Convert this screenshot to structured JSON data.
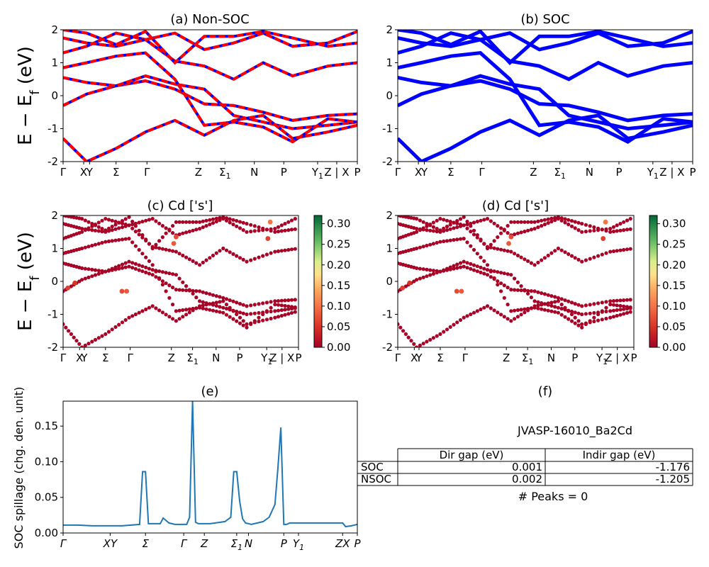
{
  "figure": {
    "ylabel_main": "E − E",
    "ylabel_sub": "f",
    "ylabel_unit": " (eV)"
  },
  "chart_data": [
    {
      "id": "a",
      "type": "line",
      "title": "(a) Non-SOC",
      "ylim": [
        -2,
        2
      ],
      "yticks": [
        -2,
        -1,
        0,
        1,
        2
      ],
      "xticks": [
        "Γ",
        "X",
        "Y",
        "Σ",
        "Γ",
        "Z",
        "Σ1",
        "N",
        "P",
        "Y1",
        "Z | X",
        "P"
      ],
      "colors": {
        "bands": "#ff0000",
        "overlay": "#0000ff"
      },
      "series": [
        {
          "x": [
            0,
            0.08,
            0.18,
            0.28,
            0.38,
            0.48,
            0.58,
            0.68,
            0.78,
            0.9,
            1.0
          ],
          "y": [
            -0.3,
            0.05,
            0.3,
            0.45,
            0.2,
            -0.25,
            -0.3,
            -0.5,
            -0.75,
            -0.6,
            -0.55
          ]
        },
        {
          "x": [
            0,
            0.08,
            0.18,
            0.28,
            0.38,
            0.48,
            0.58,
            0.68,
            0.78,
            0.9,
            1.0
          ],
          "y": [
            0.55,
            0.4,
            0.3,
            0.6,
            0.35,
            0.2,
            -0.6,
            -0.8,
            -1.0,
            -0.9,
            -0.8
          ]
        },
        {
          "x": [
            0,
            0.08,
            0.18,
            0.28,
            0.38,
            0.48,
            0.58,
            0.68,
            0.78,
            0.9,
            1.0
          ],
          "y": [
            0.85,
            1.0,
            1.2,
            1.3,
            0.5,
            -0.9,
            -0.8,
            -0.95,
            -1.4,
            -0.7,
            -0.8
          ]
        },
        {
          "x": [
            0,
            0.08,
            0.18,
            0.28,
            0.38,
            0.48,
            0.58,
            0.68,
            0.78,
            0.9,
            1.0
          ],
          "y": [
            1.3,
            1.5,
            1.9,
            1.7,
            1.05,
            0.9,
            0.5,
            1.0,
            0.6,
            0.9,
            1.0
          ]
        },
        {
          "x": [
            0,
            0.08,
            0.18,
            0.28,
            0.38,
            0.48,
            0.58,
            0.68,
            0.78,
            0.9,
            1.0
          ],
          "y": [
            -1.3,
            -2.0,
            -1.6,
            -1.1,
            -0.75,
            -1.2,
            -0.75,
            -0.6,
            -1.3,
            -1.1,
            -0.9
          ]
        },
        {
          "x": [
            0,
            0.08,
            0.18,
            0.28,
            0.38,
            0.48,
            0.58,
            0.68,
            0.78,
            0.9,
            1.0
          ],
          "y": [
            1.75,
            1.6,
            1.5,
            1.7,
            1.9,
            1.4,
            1.6,
            1.9,
            1.5,
            1.6,
            1.95
          ]
        },
        {
          "x": [
            0,
            0.08,
            0.18,
            0.28,
            0.38,
            0.48,
            0.58,
            0.68,
            0.78,
            0.9,
            1.0
          ],
          "y": [
            2.0,
            1.9,
            1.55,
            1.95,
            1.0,
            1.8,
            1.8,
            1.95,
            1.75,
            1.5,
            1.6
          ]
        }
      ]
    },
    {
      "id": "b",
      "type": "line",
      "title": "(b) SOC",
      "ylim": [
        -2,
        2
      ],
      "yticks": [
        -2,
        -1,
        0,
        1,
        2
      ],
      "xticks": [
        "Γ",
        "X",
        "Y",
        "Σ",
        "Γ",
        "Z",
        "Σ1",
        "N",
        "P",
        "Y1",
        "Z | X",
        "P"
      ],
      "colors": {
        "bands": "#0000ff"
      },
      "series": [
        {
          "x": [
            0,
            0.08,
            0.18,
            0.28,
            0.38,
            0.48,
            0.58,
            0.68,
            0.78,
            0.9,
            1.0
          ],
          "y": [
            -0.3,
            0.05,
            0.3,
            0.45,
            0.2,
            -0.25,
            -0.3,
            -0.5,
            -0.75,
            -0.6,
            -0.55
          ]
        },
        {
          "x": [
            0,
            0.08,
            0.18,
            0.28,
            0.38,
            0.48,
            0.58,
            0.68,
            0.78,
            0.9,
            1.0
          ],
          "y": [
            0.55,
            0.4,
            0.3,
            0.6,
            0.35,
            0.2,
            -0.6,
            -0.8,
            -1.0,
            -0.9,
            -0.8
          ]
        },
        {
          "x": [
            0,
            0.08,
            0.18,
            0.28,
            0.38,
            0.48,
            0.58,
            0.68,
            0.78,
            0.9,
            1.0
          ],
          "y": [
            0.85,
            1.0,
            1.2,
            1.3,
            0.5,
            -0.9,
            -0.8,
            -0.95,
            -1.4,
            -0.7,
            -0.8
          ]
        },
        {
          "x": [
            0,
            0.08,
            0.18,
            0.28,
            0.38,
            0.48,
            0.58,
            0.68,
            0.78,
            0.9,
            1.0
          ],
          "y": [
            1.3,
            1.5,
            1.9,
            1.7,
            1.05,
            0.9,
            0.5,
            1.0,
            0.6,
            0.9,
            1.0
          ]
        },
        {
          "x": [
            0,
            0.08,
            0.18,
            0.28,
            0.38,
            0.48,
            0.58,
            0.68,
            0.78,
            0.9,
            1.0
          ],
          "y": [
            -1.3,
            -2.0,
            -1.6,
            -1.1,
            -0.75,
            -1.2,
            -0.75,
            -0.6,
            -1.3,
            -1.1,
            -0.9
          ]
        },
        {
          "x": [
            0,
            0.08,
            0.18,
            0.28,
            0.38,
            0.48,
            0.58,
            0.68,
            0.78,
            0.9,
            1.0
          ],
          "y": [
            1.75,
            1.6,
            1.5,
            1.7,
            1.9,
            1.4,
            1.6,
            1.9,
            1.5,
            1.6,
            1.95
          ]
        },
        {
          "x": [
            0,
            0.08,
            0.18,
            0.28,
            0.38,
            0.48,
            0.58,
            0.68,
            0.78,
            0.9,
            1.0
          ],
          "y": [
            2.0,
            1.9,
            1.55,
            1.95,
            1.0,
            1.8,
            1.8,
            1.95,
            1.75,
            1.5,
            1.6
          ]
        }
      ]
    },
    {
      "id": "c",
      "type": "scatter",
      "title": "(c)  Cd ['s']",
      "ylim": [
        -2,
        2
      ],
      "yticks": [
        -2,
        -1,
        0,
        1,
        2
      ],
      "xticks": [
        "Γ",
        "X",
        "Y",
        "Σ",
        "Γ",
        "Z",
        "Σ1",
        "N",
        "P",
        "Y1",
        "Z | X",
        "P"
      ],
      "colorbar": {
        "range": [
          0.0,
          0.32
        ],
        "ticks": [
          "0.00",
          "0.05",
          "0.10",
          "0.15",
          "0.20",
          "0.25",
          "0.30"
        ],
        "colormap": "RdYlGn"
      },
      "highlight_points": [
        {
          "x": 0.02,
          "y": -0.2,
          "w": 0.06
        },
        {
          "x": 0.05,
          "y": -0.05,
          "w": 0.05
        },
        {
          "x": 0.25,
          "y": -0.3,
          "w": 0.07
        },
        {
          "x": 0.27,
          "y": -0.3,
          "w": 0.08
        },
        {
          "x": 0.47,
          "y": 1.15,
          "w": 0.08
        },
        {
          "x": 0.48,
          "y": 1.35,
          "w": 0.07
        },
        {
          "x": 0.87,
          "y": 1.3,
          "w": 0.06
        },
        {
          "x": 0.88,
          "y": 1.8,
          "w": 0.1
        }
      ]
    },
    {
      "id": "d",
      "type": "scatter",
      "title": "(d) Cd ['s']",
      "ylim": [
        -2,
        2
      ],
      "yticks": [
        -2,
        -1,
        0,
        1,
        2
      ],
      "xticks": [
        "Γ",
        "X",
        "Y",
        "Σ",
        "Γ",
        "Z",
        "Σ1",
        "N",
        "P",
        "Y1",
        "Z | X",
        "P"
      ],
      "colorbar": {
        "range": [
          0.0,
          0.32
        ],
        "ticks": [
          "0.00",
          "0.05",
          "0.10",
          "0.15",
          "0.20",
          "0.25",
          "0.30"
        ],
        "colormap": "RdYlGn"
      },
      "highlight_points": [
        {
          "x": 0.02,
          "y": -0.2,
          "w": 0.06
        },
        {
          "x": 0.05,
          "y": -0.05,
          "w": 0.05
        },
        {
          "x": 0.25,
          "y": -0.3,
          "w": 0.07
        },
        {
          "x": 0.27,
          "y": -0.3,
          "w": 0.08
        },
        {
          "x": 0.47,
          "y": 1.15,
          "w": 0.08
        },
        {
          "x": 0.48,
          "y": 1.35,
          "w": 0.07
        },
        {
          "x": 0.87,
          "y": 1.3,
          "w": 0.06
        },
        {
          "x": 0.88,
          "y": 1.8,
          "w": 0.1
        }
      ]
    },
    {
      "id": "e",
      "type": "line",
      "title": "(e)",
      "ylabel": "SOC spillage (chg. den. unit)",
      "ylim": [
        0,
        0.185
      ],
      "yticks": [
        "0.00",
        "0.05",
        "0.10",
        "0.15"
      ],
      "ytick_values": [
        0,
        0.05,
        0.1,
        0.15
      ],
      "xticks": [
        "Γ",
        "XY",
        "Σ",
        "Γ",
        "Z",
        "Σ1",
        "N",
        "P",
        "Y1",
        "ZX",
        "P"
      ],
      "xtick_pos": [
        0,
        0.16,
        0.28,
        0.41,
        0.48,
        0.59,
        0.63,
        0.75,
        0.8,
        0.95,
        1.0
      ],
      "colors": {
        "line": "#1f77b4"
      },
      "x": [
        0,
        0.05,
        0.1,
        0.2,
        0.26,
        0.27,
        0.28,
        0.29,
        0.3,
        0.33,
        0.34,
        0.36,
        0.38,
        0.42,
        0.43,
        0.44,
        0.45,
        0.46,
        0.5,
        0.55,
        0.57,
        0.58,
        0.59,
        0.6,
        0.61,
        0.62,
        0.64,
        0.68,
        0.7,
        0.72,
        0.73,
        0.74,
        0.75,
        0.76,
        0.77,
        0.8,
        0.9,
        0.95,
        0.96,
        0.98,
        1.0
      ],
      "y": [
        0.011,
        0.011,
        0.01,
        0.01,
        0.012,
        0.086,
        0.086,
        0.013,
        0.013,
        0.013,
        0.021,
        0.014,
        0.012,
        0.012,
        0.022,
        0.185,
        0.015,
        0.013,
        0.013,
        0.016,
        0.022,
        0.086,
        0.086,
        0.045,
        0.02,
        0.014,
        0.012,
        0.016,
        0.022,
        0.04,
        0.09,
        0.148,
        0.012,
        0.012,
        0.014,
        0.014,
        0.014,
        0.014,
        0.009,
        0.01,
        0.012
      ]
    },
    {
      "id": "f",
      "type": "table",
      "title": "(f)",
      "subtitle": "JVASP-16010_Ba2Cd",
      "columns": [
        "Dir gap (eV)",
        "Indir gap (eV)"
      ],
      "rows": [
        {
          "label": "SOC",
          "values": [
            "0.001",
            "-1.176"
          ]
        },
        {
          "label": "NSOC",
          "values": [
            "0.002",
            "-1.205"
          ]
        }
      ],
      "footer": "# Peaks = 0"
    }
  ]
}
